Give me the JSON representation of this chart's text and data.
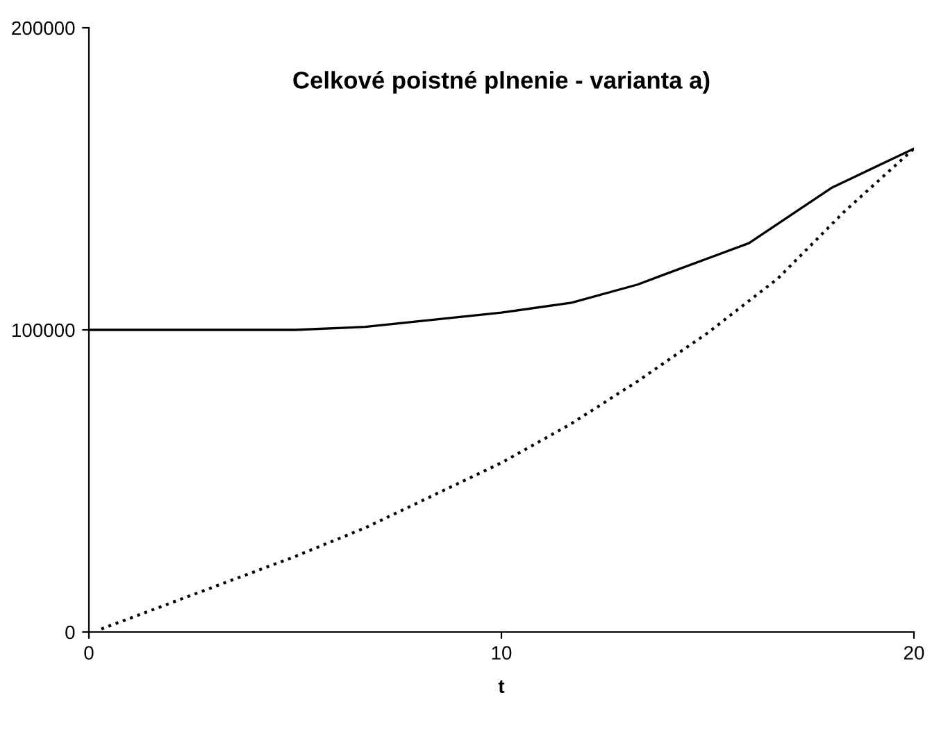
{
  "chart_data": {
    "type": "line",
    "title": "Celkové poistné plnenie - varianta a)",
    "xlabel": "t",
    "xlim": [
      0,
      20
    ],
    "ylim": [
      0,
      200000
    ],
    "xticks": [
      0,
      10,
      20
    ],
    "yticks": [
      0,
      100000,
      200000
    ],
    "grid": false,
    "legend": false,
    "marker": "none",
    "series": [
      {
        "color": "#000000",
        "line_style": "solid",
        "x": [
          0,
          5,
          6.7,
          10,
          11.7,
          13.3,
          14,
          16,
          18,
          20
        ],
        "values": [
          100000,
          100000,
          101000,
          105700,
          109000,
          115000,
          118600,
          128700,
          147000,
          160000
        ]
      },
      {
        "color": "#000000",
        "line_style": "dotted",
        "x": [
          0.3,
          5,
          6.7,
          10,
          11.7,
          13.3,
          15,
          16.7,
          18.3,
          20
        ],
        "values": [
          1000,
          25000,
          34500,
          56000,
          69000,
          83000,
          99000,
          117000,
          139000,
          160000
        ]
      }
    ]
  }
}
